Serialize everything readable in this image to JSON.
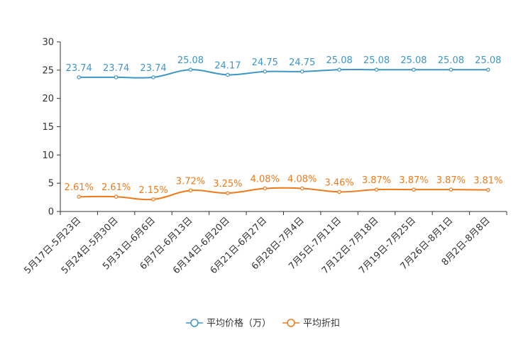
{
  "chart_data": {
    "type": "line",
    "title": "",
    "xlabel": "",
    "ylabel": "",
    "ylim": [
      0,
      30
    ],
    "yticks": [
      0,
      5,
      10,
      15,
      20,
      25,
      30
    ],
    "grid": false,
    "legend_position": "bottom-center",
    "categories": [
      "5月17日-5月23日",
      "5月24日-5月30日",
      "5月31日-6月6日",
      "6月7日-6月13日",
      "6月14日-6月20日",
      "6月21日-6月27日",
      "6月28日-7月4日",
      "7月5日-7月11日",
      "7月12日-7月18日",
      "7月19日-7月25日",
      "7月26日-8月1日",
      "8月2日-8月8日"
    ],
    "series": [
      {
        "name": "平均价格（万）",
        "color": "#3d96c8",
        "values": [
          23.74,
          23.74,
          23.74,
          25.08,
          24.17,
          24.75,
          24.75,
          25.08,
          25.08,
          25.08,
          25.08,
          25.08
        ],
        "labels": [
          "23.74",
          "23.74",
          "23.74",
          "25.08",
          "24.17",
          "24.75",
          "24.75",
          "25.08",
          "25.08",
          "25.08",
          "25.08",
          "25.08"
        ]
      },
      {
        "name": "平均折扣",
        "color": "#f07a1a",
        "values": [
          2.61,
          2.61,
          2.15,
          3.72,
          3.25,
          4.08,
          4.08,
          3.46,
          3.87,
          3.87,
          3.87,
          3.81
        ],
        "labels": [
          "2.61%",
          "2.61%",
          "2.15%",
          "3.72%",
          "3.25%",
          "4.08%",
          "4.08%",
          "3.46%",
          "3.87%",
          "3.87%",
          "3.87%",
          "3.81%"
        ]
      }
    ]
  }
}
